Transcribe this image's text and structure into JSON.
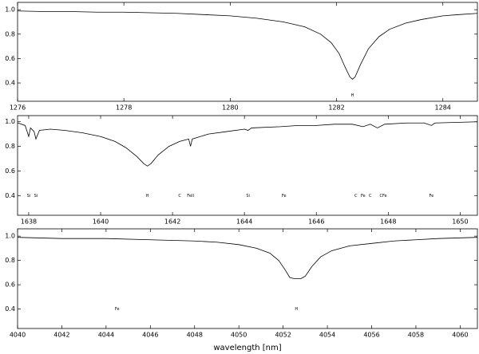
{
  "chart_data": [
    {
      "type": "line",
      "x": [
        1276,
        1276.5,
        1277,
        1277.5,
        1278,
        1278.5,
        1279,
        1279.5,
        1280,
        1280.5,
        1281,
        1281.4,
        1281.7,
        1281.9,
        1282.05,
        1282.15,
        1282.25,
        1282.3,
        1282.35,
        1282.45,
        1282.6,
        1282.8,
        1283,
        1283.3,
        1283.6,
        1284,
        1284.3,
        1284.65
      ],
      "series": [
        {
          "color": "#000000",
          "values": [
            0.99,
            0.985,
            0.985,
            0.98,
            0.98,
            0.975,
            0.97,
            0.96,
            0.95,
            0.93,
            0.9,
            0.86,
            0.8,
            0.73,
            0.64,
            0.54,
            0.45,
            0.43,
            0.45,
            0.55,
            0.68,
            0.78,
            0.84,
            0.89,
            0.92,
            0.95,
            0.96,
            0.97
          ]
        }
      ],
      "xlim": [
        1276,
        1284.65
      ],
      "ylim": [
        0.25,
        1.06
      ],
      "xticks": [
        1276,
        1278,
        1280,
        1282,
        1284
      ],
      "yticks": [
        0.4,
        0.6,
        0.8,
        {
          "value": 1,
          "label": "1.0"
        }
      ],
      "annotations": [
        {
          "text": "H",
          "x": 1282.3,
          "y": 0.3
        }
      ]
    },
    {
      "type": "line",
      "x": [
        1637.7,
        1637.9,
        1638.0,
        1638.05,
        1638.15,
        1638.2,
        1638.3,
        1638.6,
        1639,
        1639.5,
        1640,
        1640.4,
        1640.7,
        1641.0,
        1641.2,
        1641.3,
        1641.4,
        1641.6,
        1641.9,
        1642.2,
        1642.45,
        1642.5,
        1642.55,
        1643,
        1643.5,
        1644,
        1644.1,
        1644.2,
        1645,
        1645.5,
        1646,
        1646.5,
        1647,
        1647.3,
        1647.5,
        1647.7,
        1647.9,
        1648.5,
        1649,
        1649.2,
        1649.3,
        1650.48
      ],
      "series": [
        {
          "color": "#000000",
          "values": [
            0.99,
            0.97,
            0.88,
            0.95,
            0.92,
            0.86,
            0.93,
            0.94,
            0.93,
            0.91,
            0.88,
            0.84,
            0.79,
            0.72,
            0.66,
            0.64,
            0.66,
            0.73,
            0.8,
            0.84,
            0.86,
            0.8,
            0.86,
            0.9,
            0.92,
            0.94,
            0.93,
            0.95,
            0.96,
            0.97,
            0.97,
            0.98,
            0.98,
            0.96,
            0.98,
            0.95,
            0.98,
            0.99,
            0.99,
            0.97,
            0.99,
            1.0
          ]
        }
      ],
      "xlim": [
        1637.69,
        1650.48
      ],
      "ylim": [
        0.24,
        1.05
      ],
      "xticks": [
        1638,
        1640,
        1642,
        1644,
        1646,
        1648,
        1650
      ],
      "yticks": [
        0.4,
        0.6,
        0.8,
        {
          "value": 1,
          "label": "1.0"
        }
      ],
      "annotations": [
        {
          "text": "Si",
          "x": 1638.0,
          "y": 0.4
        },
        {
          "text": "Si",
          "x": 1638.2,
          "y": 0.4
        },
        {
          "text": "H",
          "x": 1641.3,
          "y": 0.4
        },
        {
          "text": "C",
          "x": 1642.2,
          "y": 0.4
        },
        {
          "text": "FeII",
          "x": 1642.5,
          "y": 0.4
        },
        {
          "text": "Si",
          "x": 1644.1,
          "y": 0.4
        },
        {
          "text": "Fe",
          "x": 1645.1,
          "y": 0.4
        },
        {
          "text": "C",
          "x": 1647.1,
          "y": 0.4
        },
        {
          "text": "Fe",
          "x": 1647.3,
          "y": 0.4
        },
        {
          "text": "C",
          "x": 1647.5,
          "y": 0.4
        },
        {
          "text": "C",
          "x": 1647.8,
          "y": 0.4
        },
        {
          "text": "Fe",
          "x": 1647.9,
          "y": 0.4
        },
        {
          "text": "Fe",
          "x": 1649.2,
          "y": 0.4
        }
      ]
    },
    {
      "type": "line",
      "x": [
        4040,
        4042,
        4044,
        4046,
        4048,
        4049,
        4050,
        4050.8,
        4051.4,
        4051.8,
        4052.1,
        4052.3,
        4052.5,
        4052.8,
        4053.0,
        4053.3,
        4053.7,
        4054.2,
        4055,
        4056,
        4057,
        4058,
        4059,
        4060.78
      ],
      "series": [
        {
          "color": "#000000",
          "values": [
            0.99,
            0.98,
            0.98,
            0.97,
            0.96,
            0.95,
            0.93,
            0.9,
            0.86,
            0.8,
            0.72,
            0.66,
            0.65,
            0.65,
            0.67,
            0.75,
            0.83,
            0.88,
            0.92,
            0.94,
            0.96,
            0.97,
            0.98,
            0.99
          ]
        }
      ],
      "xlim": [
        4040,
        4060.78
      ],
      "ylim": [
        0.24,
        1.06
      ],
      "xticks": [
        4040,
        4042,
        4044,
        4046,
        4048,
        4050,
        4052,
        4054,
        4056,
        4058,
        4060
      ],
      "yticks": [
        0.4,
        0.6,
        0.8,
        {
          "value": 1,
          "label": "1.0"
        }
      ],
      "xlabel": "wavelength [nm]",
      "annotations": [
        {
          "text": "Fe",
          "x": 4044.5,
          "y": 0.4
        },
        {
          "text": "H",
          "x": 4052.6,
          "y": 0.4
        }
      ]
    }
  ]
}
